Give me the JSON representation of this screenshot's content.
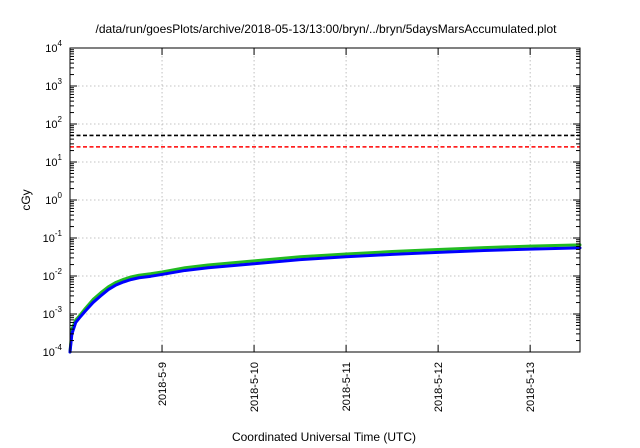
{
  "chart_data": {
    "type": "line",
    "title": "/data/run/goesPlots/archive/2018-05-13/13:00/bryn/../bryn/5daysMarsAccumulated.plot",
    "xlabel": "Coordinated Universal Time (UTC)",
    "ylabel": "cGy",
    "y_scale": "log",
    "ylim": [
      0.0001,
      10000
    ],
    "xlim": [
      "2018-05-08T00:00",
      "2018-05-13T13:00"
    ],
    "x_ticks": [
      "2018-5-9",
      "2018-5-10",
      "2018-5-11",
      "2018-5-12",
      "2018-5-13"
    ],
    "y_ticks": [
      {
        "value": 0.0001,
        "base": "10",
        "exp": "-4"
      },
      {
        "value": 0.001,
        "base": "10",
        "exp": "-3"
      },
      {
        "value": 0.01,
        "base": "10",
        "exp": "-2"
      },
      {
        "value": 0.1,
        "base": "10",
        "exp": "-1"
      },
      {
        "value": 1,
        "base": "10",
        "exp": "0"
      },
      {
        "value": 10,
        "base": "10",
        "exp": "1"
      },
      {
        "value": 100,
        "base": "10",
        "exp": "2"
      },
      {
        "value": 1000,
        "base": "10",
        "exp": "3"
      },
      {
        "value": 10000,
        "base": "10",
        "exp": "4"
      }
    ],
    "grid": true,
    "legend": false,
    "reference_lines": [
      {
        "value": 50,
        "color": "#000000",
        "style": "dashed"
      },
      {
        "value": 25,
        "color": "#ff0000",
        "style": "dashed"
      }
    ],
    "series": [
      {
        "color": "#22bb22",
        "x": [
          "2018-05-08T00:00",
          "2018-05-08T00:30",
          "2018-05-08T01:30",
          "2018-05-08T02:30",
          "2018-05-08T04:00",
          "2018-05-08T06:00",
          "2018-05-08T08:00",
          "2018-05-08T10:00",
          "2018-05-08T12:00",
          "2018-05-08T14:00",
          "2018-05-08T16:00",
          "2018-05-08T18:00",
          "2018-05-08T21:00",
          "2018-05-09T00:00",
          "2018-05-09T06:00",
          "2018-05-09T12:00",
          "2018-05-10T00:00",
          "2018-05-10T12:00",
          "2018-05-11T00:00",
          "2018-05-11T12:00",
          "2018-05-12T00:00",
          "2018-05-12T12:00",
          "2018-05-13T00:00",
          "2018-05-13T13:00"
        ],
        "y": [
          0.0001,
          0.0004,
          0.0007,
          0.0009,
          0.0014,
          0.0024,
          0.0036,
          0.0052,
          0.0068,
          0.0082,
          0.0095,
          0.0105,
          0.0115,
          0.0128,
          0.0165,
          0.0195,
          0.025,
          0.032,
          0.038,
          0.044,
          0.05,
          0.056,
          0.061,
          0.066
        ]
      },
      {
        "color": "#0000ff",
        "x": [
          "2018-05-08T00:00",
          "2018-05-08T00:30",
          "2018-05-08T01:30",
          "2018-05-08T02:30",
          "2018-05-08T04:00",
          "2018-05-08T06:00",
          "2018-05-08T08:00",
          "2018-05-08T10:00",
          "2018-05-08T12:00",
          "2018-05-08T14:00",
          "2018-05-08T16:00",
          "2018-05-08T18:00",
          "2018-05-08T21:00",
          "2018-05-09T00:00",
          "2018-05-09T06:00",
          "2018-05-09T12:00",
          "2018-05-10T00:00",
          "2018-05-10T12:00",
          "2018-05-11T00:00",
          "2018-05-11T12:00",
          "2018-05-12T00:00",
          "2018-05-12T12:00",
          "2018-05-13T00:00",
          "2018-05-13T13:00"
        ],
        "y": [
          0.0001,
          0.0003,
          0.0006,
          0.0008,
          0.0012,
          0.002,
          0.003,
          0.0044,
          0.0058,
          0.007,
          0.0081,
          0.009,
          0.0098,
          0.011,
          0.014,
          0.0165,
          0.021,
          0.027,
          0.032,
          0.037,
          0.042,
          0.047,
          0.051,
          0.055
        ]
      }
    ]
  }
}
